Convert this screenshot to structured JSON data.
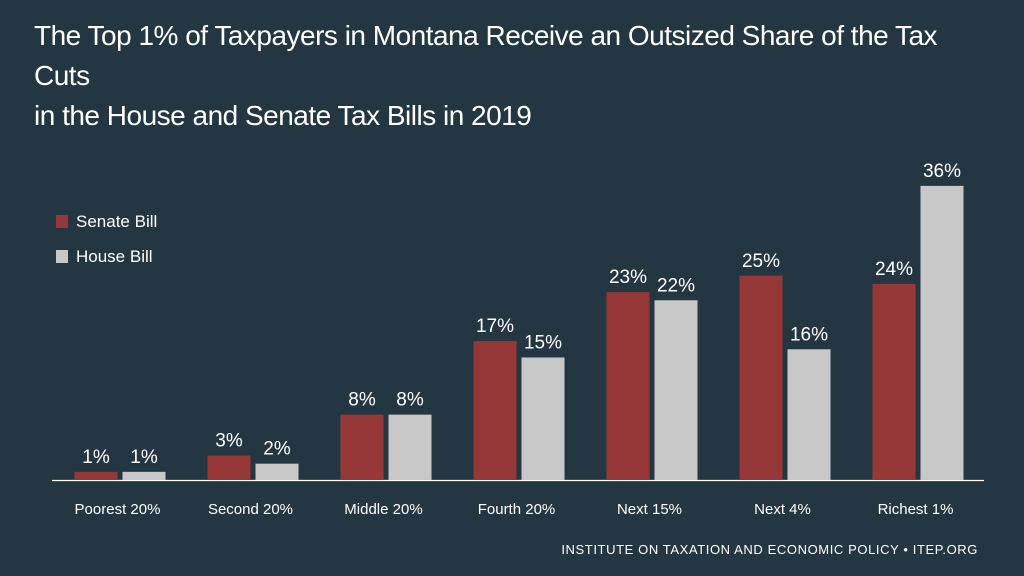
{
  "title_line1": "The Top 1% of Taxpayers in Montana Receive an Outsized Share of the Tax Cuts",
  "title_line2": "in the House and Senate Tax Bills in 2019",
  "footer": "INSTITUTE ON TAXATION AND ECONOMIC POLICY • ITEP.ORG",
  "colors": {
    "background": "#243642",
    "senate": "#963837",
    "house": "#c8c8c8",
    "text": "#ffffff"
  },
  "chart_data": {
    "type": "bar",
    "categories": [
      "Poorest 20%",
      "Second 20%",
      "Middle 20%",
      "Fourth 20%",
      "Next 15%",
      "Next 4%",
      "Richest 1%"
    ],
    "series": [
      {
        "name": "Senate Bill",
        "values": [
          1,
          3,
          8,
          17,
          23,
          25,
          24
        ],
        "labels": [
          "1%",
          "3%",
          "8%",
          "17%",
          "23%",
          "25%",
          "24%"
        ],
        "color": "#963837"
      },
      {
        "name": "House Bill",
        "values": [
          1,
          2,
          8,
          15,
          22,
          16,
          36
        ],
        "labels": [
          "1%",
          "2%",
          "8%",
          "15%",
          "22%",
          "16%",
          "36%"
        ],
        "color": "#c8c8c8"
      }
    ],
    "legend_position": "left",
    "grid": false
  }
}
